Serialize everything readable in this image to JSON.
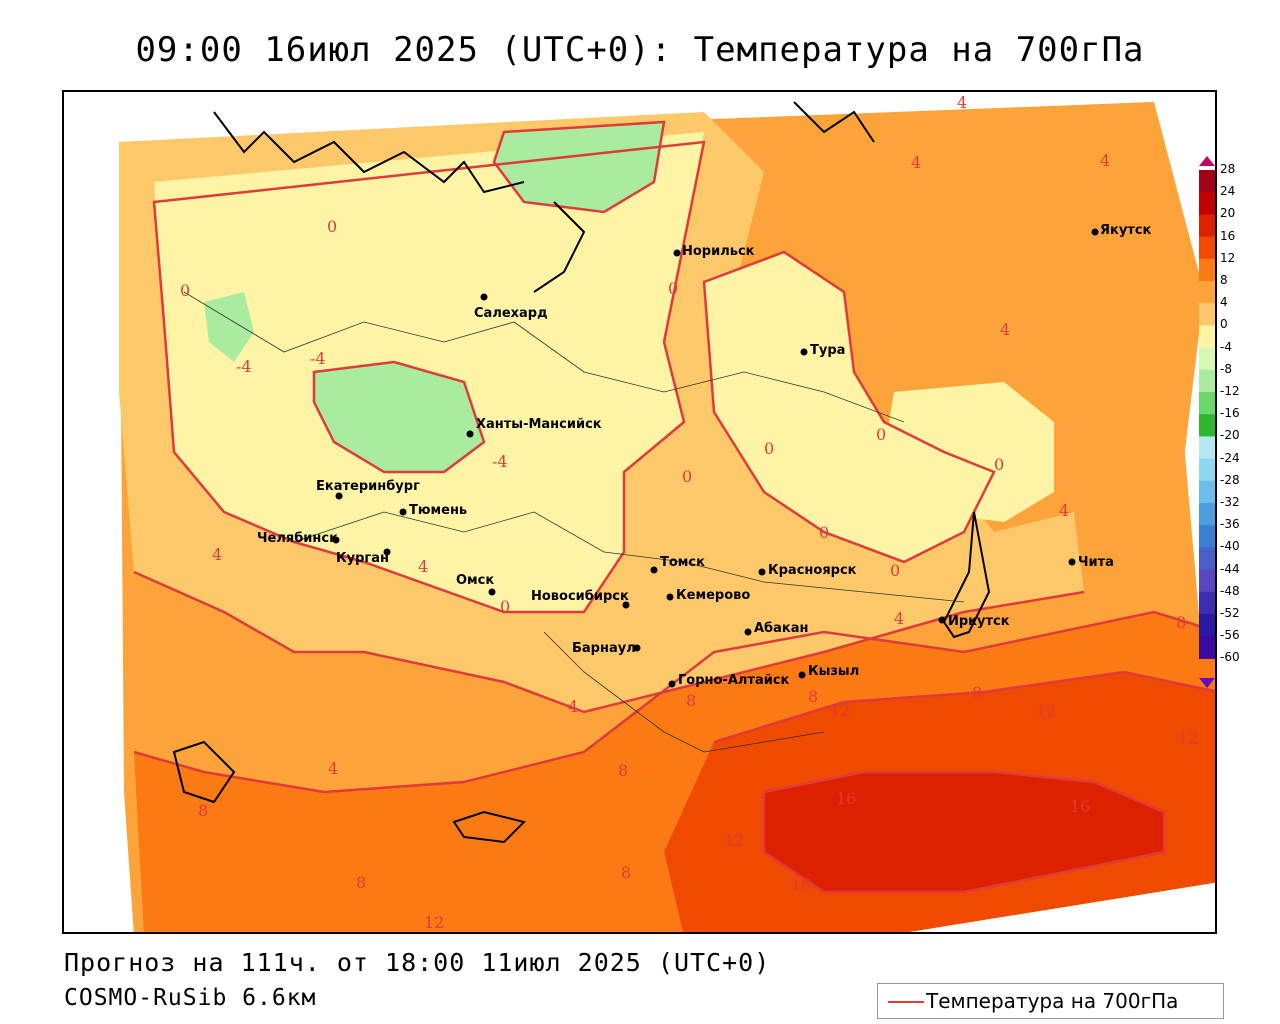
{
  "title": "09:00 16июл 2025 (UTC+0): Температура на 700гПа",
  "forecast_line": "Прогноз на 111ч. от 18:00 11июл 2025 (UTC+0)",
  "model_line": "COSMO-RuSib 6.6км",
  "legend": {
    "label": "Температура на 700гПа",
    "line_color": "#e03a3a"
  },
  "colorbar": {
    "ticks": [
      "28",
      "24",
      "20",
      "16",
      "12",
      "8",
      "4",
      "0",
      "-4",
      "-8",
      "-12",
      "-16",
      "-20",
      "-24",
      "-28",
      "-32",
      "-36",
      "-40",
      "-44",
      "-48",
      "-52",
      "-56",
      "-60"
    ],
    "colors": [
      "#a3001b",
      "#c30000",
      "#dd2000",
      "#f04a00",
      "#fb7a14",
      "#fca33a",
      "#fdc86a",
      "#fff4a6",
      "#d8f7b0",
      "#a9eca0",
      "#6bd86a",
      "#2fb82f",
      "#b4e8f2",
      "#8fd6f0",
      "#6cbde9",
      "#4b9fdf",
      "#3a7fd4",
      "#4a5ec9",
      "#5a46c0",
      "#3a2fb0",
      "#2a1aa0",
      "#3a0aa0"
    ]
  },
  "cities": [
    {
      "name": "Норильск"
    },
    {
      "name": "Якутск"
    },
    {
      "name": "Салехард"
    },
    {
      "name": "Тура"
    },
    {
      "name": "Ханты-Мансийск"
    },
    {
      "name": "Екатеринбург"
    },
    {
      "name": "Тюмень"
    },
    {
      "name": "Челябинск"
    },
    {
      "name": "Курган"
    },
    {
      "name": "Омск"
    },
    {
      "name": "Новосибирск"
    },
    {
      "name": "Томск"
    },
    {
      "name": "Кемерово"
    },
    {
      "name": "Красноярск"
    },
    {
      "name": "Барнаул"
    },
    {
      "name": "Абакан"
    },
    {
      "name": "Горно-Алтайск"
    },
    {
      "name": "Кызыл"
    },
    {
      "name": "Иркутск"
    },
    {
      "name": "Чита"
    }
  ],
  "isotherm_labels": [
    "4",
    "4",
    "4",
    "0",
    "0",
    "4",
    "-4",
    "-4",
    "-4",
    "0",
    "0",
    "0",
    "0",
    "0",
    "0",
    "4",
    "0",
    "4",
    "4",
    "8",
    "4",
    "4",
    "0",
    "8",
    "8",
    "12",
    "12",
    "12",
    "8",
    "4",
    "8",
    "16",
    "16",
    "12",
    "8",
    "16",
    "12",
    "8",
    "8"
  ]
}
